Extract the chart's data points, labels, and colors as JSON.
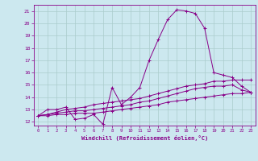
{
  "bg_color": "#cce8ef",
  "line_color": "#880088",
  "grid_color": "#aacccc",
  "xlabel": "Windchill (Refroidissement éolien,°C)",
  "ylabel_ticks": [
    12,
    13,
    14,
    15,
    16,
    17,
    18,
    19,
    20,
    21
  ],
  "xticks": [
    0,
    1,
    2,
    3,
    4,
    5,
    6,
    7,
    8,
    9,
    10,
    11,
    12,
    13,
    14,
    15,
    16,
    17,
    18,
    19,
    20,
    21,
    22,
    23
  ],
  "xlim": [
    -0.5,
    23.5
  ],
  "ylim": [
    11.7,
    21.5
  ],
  "series": [
    {
      "x": [
        0,
        1,
        2,
        3,
        4,
        5,
        6,
        7,
        8,
        9,
        10,
        11,
        12,
        13,
        14,
        15,
        16,
        17,
        18,
        19,
        20,
        21,
        22,
        23
      ],
      "y": [
        12.5,
        13.0,
        13.0,
        13.2,
        12.2,
        12.3,
        12.6,
        11.8,
        14.8,
        13.4,
        14.0,
        14.8,
        17.0,
        18.7,
        20.3,
        21.1,
        21.0,
        20.8,
        19.6,
        16.0,
        15.8,
        15.6,
        14.9,
        14.4
      ]
    },
    {
      "x": [
        0,
        1,
        2,
        3,
        4,
        5,
        6,
        7,
        8,
        9,
        10,
        11,
        12,
        13,
        14,
        15,
        16,
        17,
        18,
        19,
        20,
        21,
        22,
        23
      ],
      "y": [
        12.5,
        12.6,
        12.8,
        13.0,
        13.1,
        13.2,
        13.4,
        13.5,
        13.6,
        13.7,
        13.8,
        13.9,
        14.1,
        14.3,
        14.5,
        14.7,
        14.9,
        15.0,
        15.1,
        15.3,
        15.3,
        15.4,
        15.4,
        15.4
      ]
    },
    {
      "x": [
        0,
        1,
        2,
        3,
        4,
        5,
        6,
        7,
        8,
        9,
        10,
        11,
        12,
        13,
        14,
        15,
        16,
        17,
        18,
        19,
        20,
        21,
        22,
        23
      ],
      "y": [
        12.5,
        12.6,
        12.7,
        12.8,
        12.9,
        12.9,
        13.0,
        13.1,
        13.2,
        13.3,
        13.4,
        13.6,
        13.7,
        13.9,
        14.1,
        14.3,
        14.5,
        14.7,
        14.8,
        14.9,
        14.9,
        15.0,
        14.6,
        14.4
      ]
    },
    {
      "x": [
        0,
        1,
        2,
        3,
        4,
        5,
        6,
        7,
        8,
        9,
        10,
        11,
        12,
        13,
        14,
        15,
        16,
        17,
        18,
        19,
        20,
        21,
        22,
        23
      ],
      "y": [
        12.5,
        12.5,
        12.6,
        12.6,
        12.7,
        12.7,
        12.7,
        12.8,
        12.9,
        13.0,
        13.1,
        13.2,
        13.3,
        13.4,
        13.6,
        13.7,
        13.8,
        13.9,
        14.0,
        14.1,
        14.2,
        14.3,
        14.3,
        14.4
      ]
    }
  ]
}
